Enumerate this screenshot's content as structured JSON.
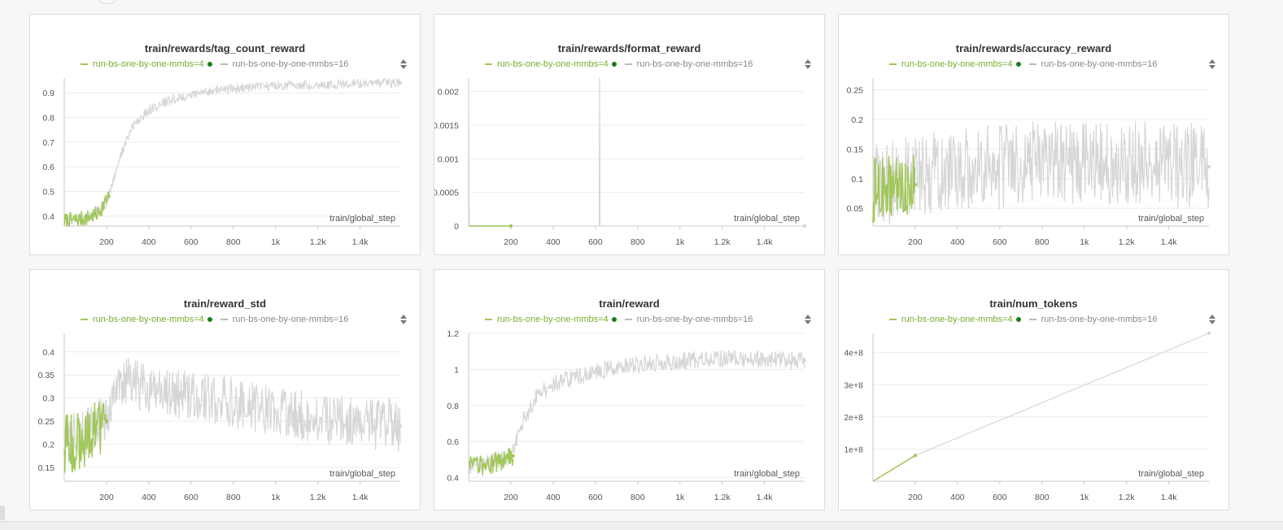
{
  "colors": {
    "run4": "#a2c75a",
    "run16": "#d6d6d6",
    "grid": "#ececec",
    "axis": "#c8c8c8",
    "tick": "#555555",
    "dot": "#1b7c1b"
  },
  "legend": {
    "run4": "run-bs-one-by-one-mmbs=4",
    "run16": "run-bs-one-by-one-mmbs=16"
  },
  "icons": {
    "sort": "sort-icon",
    "legend_dot": "dot-icon"
  },
  "panels": [
    {
      "title": "train/rewards/tag_count_reward",
      "xlabel": "train/global_step",
      "x_ticks": [
        "200",
        "400",
        "600",
        "800",
        "1k",
        "1.2k",
        "1.4k"
      ],
      "y_ticks": [
        "0.4",
        "0.5",
        "0.6",
        "0.7",
        "0.8",
        "0.9"
      ]
    },
    {
      "title": "train/rewards/format_reward",
      "xlabel": "train/global_step",
      "x_ticks": [
        "200",
        "400",
        "600",
        "800",
        "1k",
        "1.2k",
        "1.4k"
      ],
      "y_ticks": [
        "0",
        "0.0005",
        "0.001",
        "0.0015",
        "0.002"
      ]
    },
    {
      "title": "train/rewards/accuracy_reward",
      "xlabel": "train/global_step",
      "x_ticks": [
        "200",
        "400",
        "600",
        "800",
        "1k",
        "1.2k",
        "1.4k"
      ],
      "y_ticks": [
        "0.05",
        "0.1",
        "0.15",
        "0.2",
        "0.25"
      ]
    },
    {
      "title": "train/reward_std",
      "xlabel": "train/global_step",
      "x_ticks": [
        "200",
        "400",
        "600",
        "800",
        "1k",
        "1.2k",
        "1.4k"
      ],
      "y_ticks": [
        "0.15",
        "0.2",
        "0.25",
        "0.3",
        "0.35",
        "0.4"
      ]
    },
    {
      "title": "train/reward",
      "xlabel": "train/global_step",
      "x_ticks": [
        "200",
        "400",
        "600",
        "800",
        "1k",
        "1.2k",
        "1.4k"
      ],
      "y_ticks": [
        "0.4",
        "0.6",
        "0.8",
        "1",
        "1.2"
      ]
    },
    {
      "title": "train/num_tokens",
      "xlabel": "train/global_step",
      "x_ticks": [
        "200",
        "400",
        "600",
        "800",
        "1k",
        "1.2k",
        "1.4k"
      ],
      "y_ticks": [
        "1e+8",
        "2e+8",
        "3e+8",
        "4e+8"
      ]
    }
  ],
  "chart_data": [
    {
      "type": "line",
      "title": "train/rewards/tag_count_reward",
      "xlabel": "train/global_step",
      "xlim": [
        0,
        1590
      ],
      "ylim": [
        0.36,
        0.96
      ],
      "y_ticks": [
        0.4,
        0.5,
        0.6,
        0.7,
        0.8,
        0.9
      ],
      "x_ticks": [
        200,
        400,
        600,
        800,
        1000,
        1200,
        1400
      ],
      "noisy": true,
      "series": [
        {
          "name": "run-bs-one-by-one-mmbs=4",
          "x_end": 210,
          "anchors": [
            [
              0,
              0.38
            ],
            [
              100,
              0.39
            ],
            [
              160,
              0.41
            ],
            [
              210,
              0.48
            ]
          ],
          "noise": 0.02
        },
        {
          "name": "run-bs-one-by-one-mmbs=16",
          "x_end": 1590,
          "anchors": [
            [
              0,
              0.38
            ],
            [
              100,
              0.39
            ],
            [
              200,
              0.45
            ],
            [
              260,
              0.63
            ],
            [
              320,
              0.76
            ],
            [
              400,
              0.83
            ],
            [
              500,
              0.87
            ],
            [
              700,
              0.91
            ],
            [
              1000,
              0.93
            ],
            [
              1300,
              0.935
            ],
            [
              1590,
              0.94
            ]
          ],
          "noise": 0.012
        }
      ]
    },
    {
      "type": "line",
      "title": "train/rewards/format_reward",
      "xlabel": "train/global_step",
      "xlim": [
        0,
        1590
      ],
      "ylim": [
        0,
        0.0022
      ],
      "y_ticks": [
        0,
        0.0005,
        0.001,
        0.0015,
        0.002
      ],
      "x_ticks": [
        200,
        400,
        600,
        800,
        1000,
        1200,
        1400
      ],
      "noisy": false,
      "series": [
        {
          "name": "run-bs-one-by-one-mmbs=4",
          "x_end": 200,
          "anchors": [
            [
              0,
              0
            ],
            [
              200,
              0
            ]
          ],
          "noise": 0
        },
        {
          "name": "run-bs-one-by-one-mmbs=16",
          "x_end": 1590,
          "anchors": [
            [
              0,
              0.0022
            ],
            [
              3,
              0
            ],
            [
              618,
              0
            ],
            [
              620,
              0.0022
            ],
            [
              622,
              0
            ],
            [
              1590,
              0
            ]
          ],
          "noise": 0
        }
      ]
    },
    {
      "type": "line",
      "title": "train/rewards/accuracy_reward",
      "xlabel": "train/global_step",
      "xlim": [
        0,
        1590
      ],
      "ylim": [
        0.02,
        0.27
      ],
      "y_ticks": [
        0.05,
        0.1,
        0.15,
        0.2,
        0.25
      ],
      "x_ticks": [
        200,
        400,
        600,
        800,
        1000,
        1200,
        1400
      ],
      "noisy": true,
      "series": [
        {
          "name": "run-bs-one-by-one-mmbs=4",
          "x_end": 200,
          "anchors": [
            [
              0,
              0.08
            ],
            [
              100,
              0.085
            ],
            [
              200,
              0.09
            ]
          ],
          "noise": 0.035
        },
        {
          "name": "run-bs-one-by-one-mmbs=16",
          "x_end": 1590,
          "anchors": [
            [
              0,
              0.085
            ],
            [
              300,
              0.11
            ],
            [
              600,
              0.12
            ],
            [
              1000,
              0.13
            ],
            [
              1590,
              0.12
            ]
          ],
          "noise": 0.045
        }
      ]
    },
    {
      "type": "line",
      "title": "train/reward_std",
      "xlabel": "train/global_step",
      "xlim": [
        0,
        1590
      ],
      "ylim": [
        0.12,
        0.44
      ],
      "y_ticks": [
        0.15,
        0.2,
        0.25,
        0.3,
        0.35,
        0.4
      ],
      "x_ticks": [
        200,
        400,
        600,
        800,
        1000,
        1200,
        1400
      ],
      "noisy": true,
      "series": [
        {
          "name": "run-bs-one-by-one-mmbs=4",
          "x_end": 200,
          "anchors": [
            [
              0,
              0.2
            ],
            [
              100,
              0.21
            ],
            [
              200,
              0.25
            ]
          ],
          "noise": 0.04
        },
        {
          "name": "run-bs-one-by-one-mmbs=16",
          "x_end": 1590,
          "anchors": [
            [
              0,
              0.2
            ],
            [
              200,
              0.26
            ],
            [
              280,
              0.34
            ],
            [
              400,
              0.32
            ],
            [
              700,
              0.3
            ],
            [
              1000,
              0.27
            ],
            [
              1300,
              0.25
            ],
            [
              1590,
              0.24
            ]
          ],
          "noise": 0.035
        }
      ]
    },
    {
      "type": "line",
      "title": "train/reward",
      "xlabel": "train/global_step",
      "xlim": [
        0,
        1590
      ],
      "ylim": [
        0.38,
        1.2
      ],
      "y_ticks": [
        0.4,
        0.6,
        0.8,
        1,
        1.2
      ],
      "x_ticks": [
        200,
        400,
        600,
        800,
        1000,
        1200,
        1400
      ],
      "noisy": true,
      "series": [
        {
          "name": "run-bs-one-by-one-mmbs=4",
          "x_end": 210,
          "anchors": [
            [
              0,
              0.46
            ],
            [
              100,
              0.47
            ],
            [
              200,
              0.52
            ]
          ],
          "noise": 0.035
        },
        {
          "name": "run-bs-one-by-one-mmbs=16",
          "x_end": 1590,
          "anchors": [
            [
              0,
              0.46
            ],
            [
              200,
              0.52
            ],
            [
              260,
              0.72
            ],
            [
              330,
              0.86
            ],
            [
              420,
              0.93
            ],
            [
              600,
              0.99
            ],
            [
              900,
              1.04
            ],
            [
              1200,
              1.06
            ],
            [
              1590,
              1.05
            ]
          ],
          "noise": 0.03
        }
      ]
    },
    {
      "type": "line",
      "title": "train/num_tokens",
      "xlabel": "train/global_step",
      "xlim": [
        0,
        1590
      ],
      "ylim": [
        0,
        460000000
      ],
      "y_ticks": [
        100000000,
        200000000,
        300000000,
        400000000
      ],
      "x_ticks": [
        200,
        400,
        600,
        800,
        1000,
        1200,
        1400
      ],
      "noisy": false,
      "series": [
        {
          "name": "run-bs-one-by-one-mmbs=4",
          "x_end": 200,
          "anchors": [
            [
              0,
              0
            ],
            [
              200,
              80000000
            ]
          ],
          "noise": 0
        },
        {
          "name": "run-bs-one-by-one-mmbs=16",
          "x_end": 1590,
          "anchors": [
            [
              0,
              0
            ],
            [
              200,
              80000000
            ],
            [
              1590,
              460000000
            ]
          ],
          "noise": 0
        }
      ]
    }
  ]
}
